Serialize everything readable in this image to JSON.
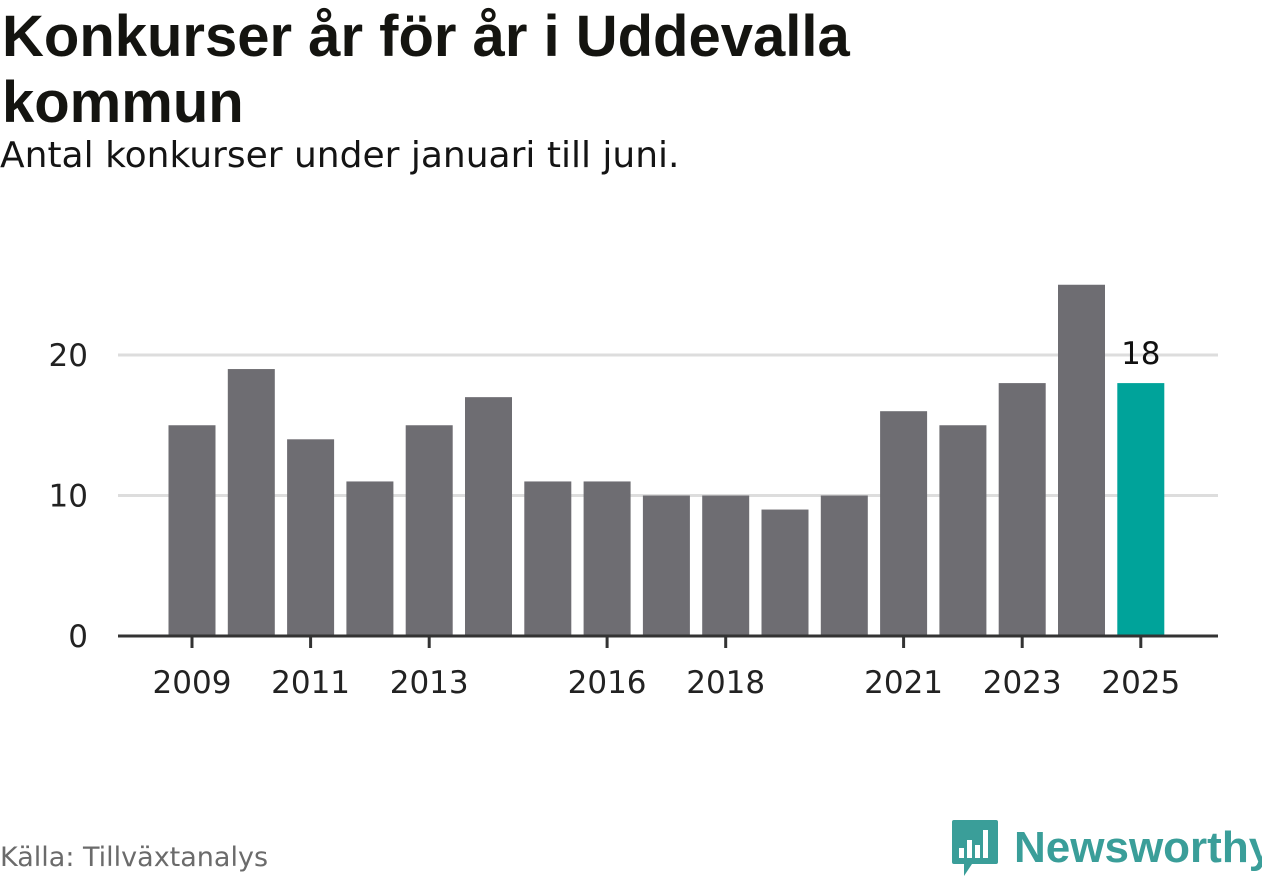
{
  "header": {
    "title": "Konkurser år för år i Uddevalla kommun",
    "subtitle": "Antal konkurser under januari till juni."
  },
  "footer": {
    "source": "Källa: Tillväxtanalys",
    "brand": "Newsworthy",
    "brand_icon": "bar-chart-speech-bubble-icon"
  },
  "colors": {
    "bar": "#6e6d72",
    "highlight": "#00a39a",
    "grid": "#dddddd",
    "axis": "#333333",
    "brand": "#3a9e99"
  },
  "chart_data": {
    "type": "bar",
    "title": "Konkurser år för år i Uddevalla kommun",
    "subtitle": "Antal konkurser under januari till juni.",
    "categories": [
      "2009",
      "2010",
      "2011",
      "2012",
      "2013",
      "2014",
      "2015",
      "2016",
      "2017",
      "2018",
      "2019",
      "2020",
      "2021",
      "2022",
      "2023",
      "2024",
      "2025"
    ],
    "values": [
      15,
      19,
      14,
      11,
      15,
      17,
      11,
      11,
      10,
      10,
      9,
      10,
      16,
      15,
      18,
      25,
      18
    ],
    "x_tick_labels": [
      "2009",
      "2011",
      "2013",
      "2016",
      "2018",
      "2021",
      "2023",
      "2025"
    ],
    "y_ticks": [
      0,
      10,
      20
    ],
    "ylim": [
      0,
      25
    ],
    "grid": true,
    "highlight_category": "2025",
    "data_labels": [
      {
        "category": "2025",
        "text": "18"
      }
    ],
    "xlabel": "",
    "ylabel": ""
  }
}
